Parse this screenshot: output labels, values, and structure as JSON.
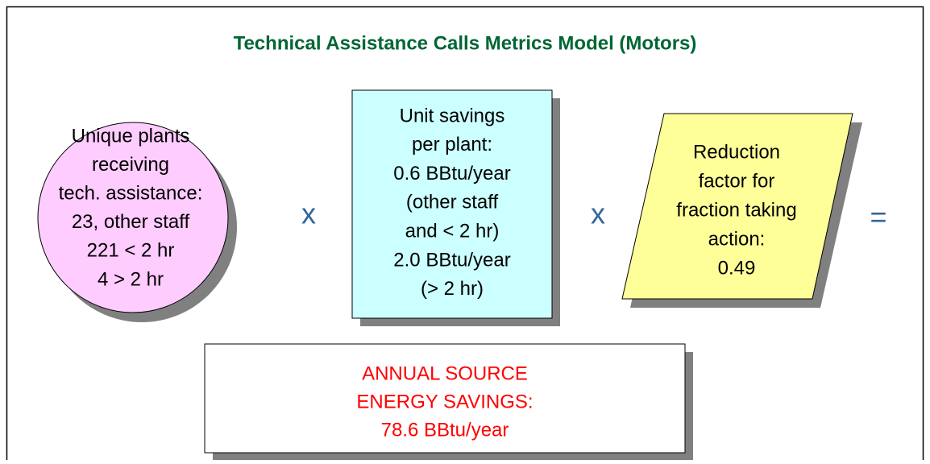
{
  "title": "Technical Assistance Calls Metrics Model (Motors)",
  "nodes": [
    {
      "lines": [
        "Unique plants",
        "receiving",
        "tech. assistance:",
        "23, other staff",
        "221 < 2 hr",
        "4 > 2 hr"
      ]
    },
    {
      "lines": [
        "Unit savings",
        "per plant:",
        "0.6 BBtu/year",
        "(other staff",
        "and < 2 hr)",
        "2.0 BBtu/year",
        "(> 2 hr)"
      ]
    },
    {
      "lines": [
        "Reduction",
        "factor for",
        "fraction taking",
        "action:",
        "0.49"
      ]
    },
    {
      "lines": [
        "ANNUAL SOURCE",
        "ENERGY SAVINGS:",
        "78.6 BBtu/year"
      ]
    }
  ],
  "operators": [
    "x",
    "x",
    "="
  ]
}
